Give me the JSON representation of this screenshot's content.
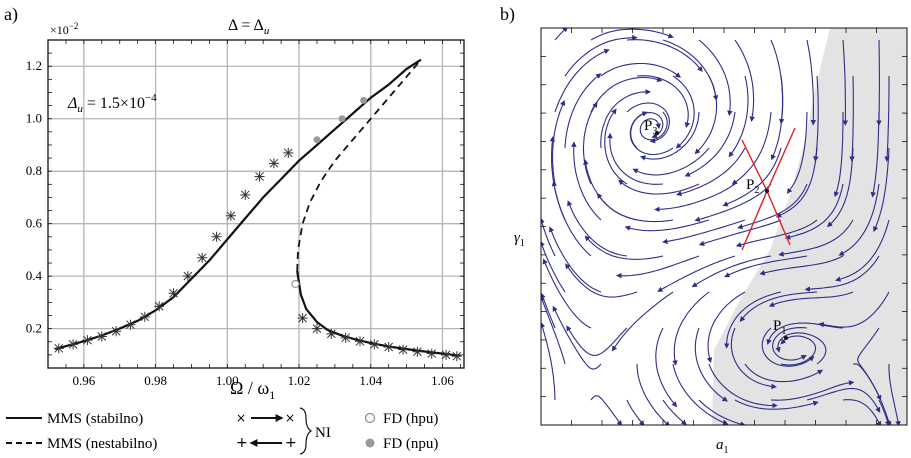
{
  "panel_a": {
    "tag": "a)",
    "title_main": "Δ = Δ",
    "title_sub": "u",
    "y_multiplier": "×10",
    "y_multiplier_exp": "−2",
    "annotation_main": "Δ",
    "annotation_sub": "u",
    "annotation_eq": " = 1.5×10",
    "annotation_exp": "−4",
    "xlabel_main": "Ω / ω",
    "xlabel_sub": "1"
  },
  "legend": {
    "mms_stable": "MMS (stabilno)",
    "mms_unstable": "MMS (nestabilno)",
    "ni": "NI",
    "fd_hpu": "FD (hpu)",
    "fd_npu": "FD (npu)"
  },
  "panel_b": {
    "tag": "b)",
    "xlabel_main": "a",
    "xlabel_sub": "1",
    "ylabel_main": "γ",
    "ylabel_sub": "1",
    "points": [
      {
        "name": "P",
        "sub": "1"
      },
      {
        "name": "P",
        "sub": "2"
      },
      {
        "name": "P",
        "sub": "3"
      }
    ],
    "colors": {
      "stream": "#2e2e8a",
      "separatrix": "#e02020",
      "shade": "#e3e3e3"
    }
  },
  "chart_data": [
    {
      "type": "line",
      "xlim": [
        0.95,
        1.066
      ],
      "ylim": [
        0.05,
        1.3
      ],
      "x_ticks": [
        0.96,
        0.98,
        1.0,
        1.02,
        1.04,
        1.06
      ],
      "x_tick_labels": [
        "0.96",
        "0.98",
        "1.00",
        "1.02",
        "1.04",
        "1.06"
      ],
      "y_ticks": [
        0.2,
        0.4,
        0.6,
        0.8,
        1.0,
        1.2
      ],
      "y_tick_labels": [
        "0.2",
        "0.4",
        "0.6",
        "0.8",
        "1.0",
        "1.2"
      ],
      "grid": true,
      "series": [
        {
          "name": "MMS (stabilno)",
          "x": [
            0.952,
            0.956,
            0.96,
            0.965,
            0.97,
            0.975,
            0.98,
            0.985,
            0.99,
            0.995,
            1.0,
            1.005,
            1.01,
            1.015,
            1.02,
            1.025,
            1.03,
            1.035,
            1.04,
            1.045,
            1.05,
            1.054
          ],
          "y": [
            0.122,
            0.137,
            0.152,
            0.174,
            0.2,
            0.23,
            0.27,
            0.32,
            0.39,
            0.46,
            0.54,
            0.62,
            0.7,
            0.77,
            0.84,
            0.9,
            0.96,
            1.02,
            1.08,
            1.13,
            1.19,
            1.225
          ]
        },
        {
          "name": "MMS (stabilno)",
          "x": [
            1.0195,
            1.0205,
            1.022,
            1.025,
            1.028,
            1.032,
            1.036,
            1.04,
            1.045,
            1.05,
            1.055,
            1.06,
            1.065
          ],
          "y": [
            0.42,
            0.33,
            0.275,
            0.225,
            0.195,
            0.173,
            0.158,
            0.145,
            0.132,
            0.122,
            0.113,
            0.105,
            0.097
          ]
        },
        {
          "name": "MMS (nestabilno)",
          "x": [
            1.0195,
            1.0197,
            1.021,
            1.023,
            1.026,
            1.03,
            1.035,
            1.04,
            1.045,
            1.05,
            1.054
          ],
          "y": [
            0.42,
            0.5,
            0.6,
            0.68,
            0.76,
            0.84,
            0.92,
            1.0,
            1.08,
            1.16,
            1.225
          ]
        },
        {
          "name": "NI",
          "x": [
            0.953,
            0.957,
            0.961,
            0.965,
            0.969,
            0.973,
            0.977,
            0.981,
            0.985,
            0.989,
            0.993,
            0.997,
            1.001,
            1.005,
            1.009,
            1.013,
            1.017,
            1.021,
            1.025,
            1.029,
            1.033,
            1.037,
            1.041,
            1.045,
            1.049,
            1.053,
            1.057,
            1.061,
            1.064
          ],
          "y": [
            0.125,
            0.14,
            0.156,
            0.17,
            0.19,
            0.215,
            0.245,
            0.285,
            0.335,
            0.4,
            0.47,
            0.55,
            0.63,
            0.71,
            0.78,
            0.83,
            0.87,
            0.24,
            0.2,
            0.18,
            0.165,
            0.152,
            0.14,
            0.13,
            0.12,
            0.112,
            0.105,
            0.1,
            0.095
          ]
        },
        {
          "name": "FD (hpu)",
          "x": [
            1.019
          ],
          "y": [
            0.37
          ]
        },
        {
          "name": "FD (npu)",
          "x": [
            1.025,
            1.032,
            1.038
          ],
          "y": [
            0.92,
            1.0,
            1.07
          ]
        }
      ]
    },
    {
      "type": "other",
      "description_of_marks": "stream plot with equilibria",
      "points_labels": [
        "P1",
        "P2",
        "P3"
      ]
    }
  ]
}
